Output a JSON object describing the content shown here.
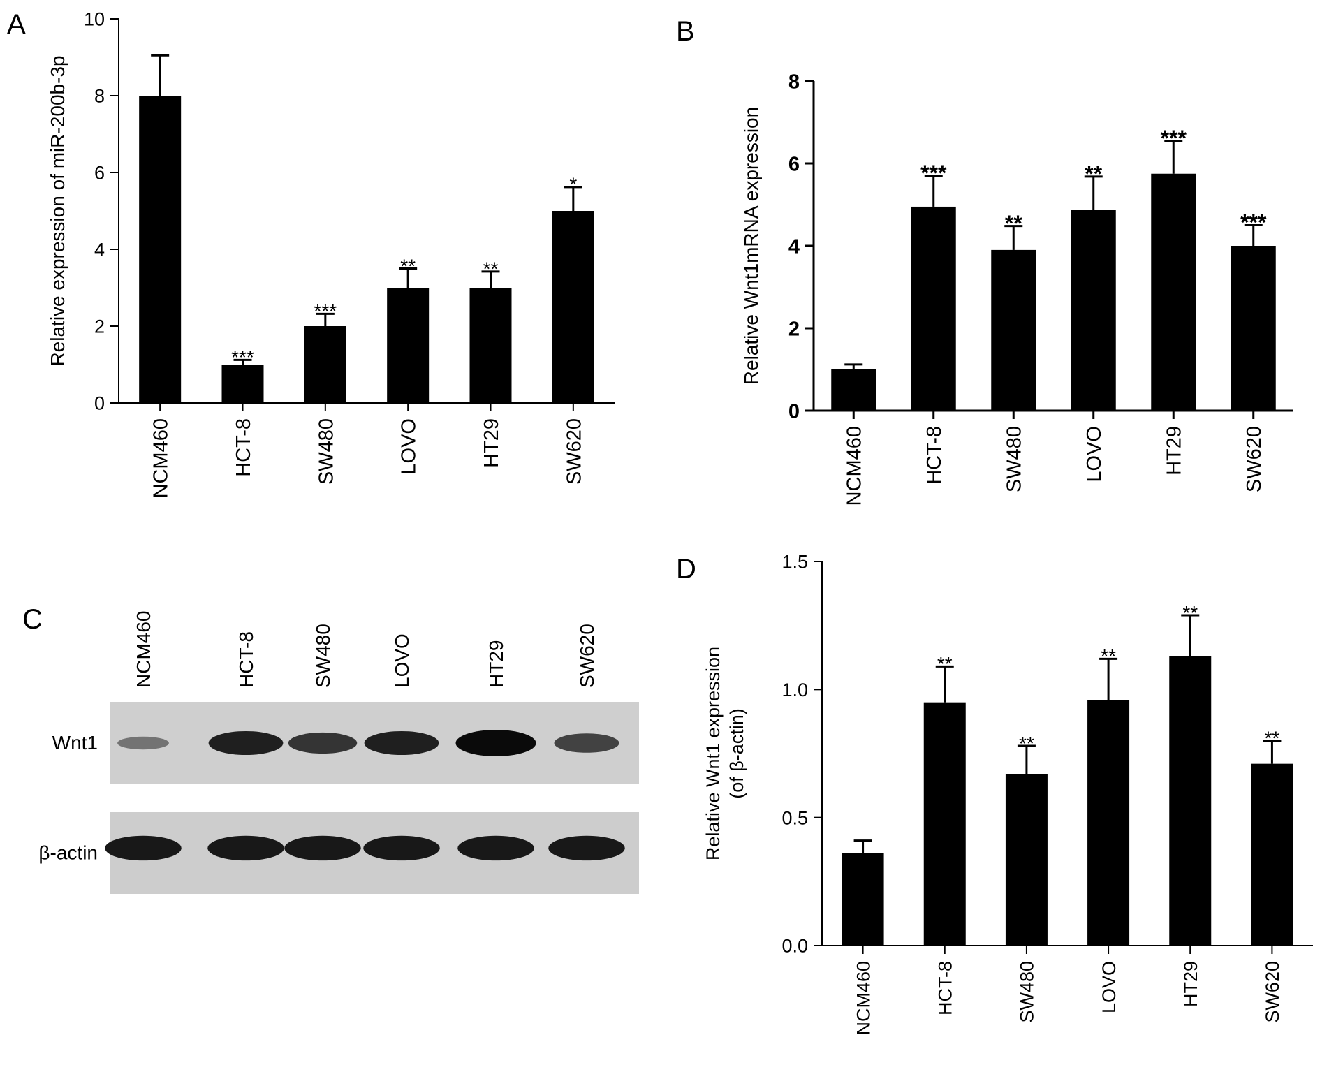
{
  "panels": {
    "A": {
      "letter": "A"
    },
    "B": {
      "letter": "B"
    },
    "C": {
      "letter": "C"
    },
    "D": {
      "letter": "D"
    }
  },
  "chart_data": [
    {
      "id": "A",
      "type": "bar",
      "categories": [
        "NCM460",
        "HCT-8",
        "SW480",
        "LOVO",
        "HT29",
        "SW620"
      ],
      "values": [
        8.0,
        1.0,
        2.0,
        3.0,
        3.0,
        5.0
      ],
      "errors": [
        1.05,
        0.12,
        0.32,
        0.5,
        0.42,
        0.62
      ],
      "significance": [
        "",
        "***",
        "***",
        "**",
        "**",
        "*"
      ],
      "ylabel": "Relative expression of miR-200b-3p",
      "ylim": [
        0,
        10
      ],
      "yticks": [
        0,
        2,
        4,
        6,
        8,
        10
      ],
      "ytick_labels": [
        "0",
        "2",
        "4",
        "6",
        "8",
        "10"
      ],
      "bar_color": "#000000"
    },
    {
      "id": "B",
      "type": "bar",
      "categories": [
        "NCM460",
        "HCT-8",
        "SW480",
        "LOVO",
        "HT29",
        "SW620"
      ],
      "values": [
        1.0,
        4.95,
        3.9,
        4.88,
        5.75,
        4.0
      ],
      "errors": [
        0.12,
        0.75,
        0.58,
        0.8,
        0.8,
        0.5
      ],
      "significance": [
        "",
        "***",
        "**",
        "**",
        "***",
        "***"
      ],
      "ylabel": "Relative Wnt1mRNA expression",
      "ylim": [
        0,
        8
      ],
      "yticks": [
        0,
        2,
        4,
        6,
        8
      ],
      "ytick_labels": [
        "0",
        "2",
        "4",
        "6",
        "8"
      ],
      "bar_color": "#000000"
    },
    {
      "id": "D",
      "type": "bar",
      "categories": [
        "NCM460",
        "HCT-8",
        "SW480",
        "LOVO",
        "HT29",
        "SW620"
      ],
      "values": [
        0.36,
        0.95,
        0.67,
        0.96,
        1.13,
        0.71
      ],
      "errors": [
        0.05,
        0.14,
        0.11,
        0.16,
        0.16,
        0.09
      ],
      "significance": [
        "",
        "**",
        "**",
        "**",
        "**",
        "**"
      ],
      "ylabel_lines": [
        "Relative  Wnt1 expression",
        "(of β-actin)"
      ],
      "ylim": [
        0,
        1.5
      ],
      "yticks": [
        0,
        0.5,
        1.0,
        1.5
      ],
      "ytick_labels": [
        "0.0",
        "0.5",
        "1.0",
        "1.5"
      ],
      "bar_color": "#000000"
    }
  ],
  "blot": {
    "lane_labels": [
      "NCM460",
      "HCT-8",
      "SW480",
      "LOVO",
      "HT29",
      "SW620"
    ],
    "rows": [
      {
        "label": "Wnt1",
        "band_intensity": [
          0.25,
          0.85,
          0.7,
          0.85,
          1.0,
          0.6
        ]
      },
      {
        "label": "β-actin",
        "band_intensity": [
          0.9,
          0.9,
          0.9,
          0.9,
          0.9,
          0.9
        ]
      }
    ]
  }
}
